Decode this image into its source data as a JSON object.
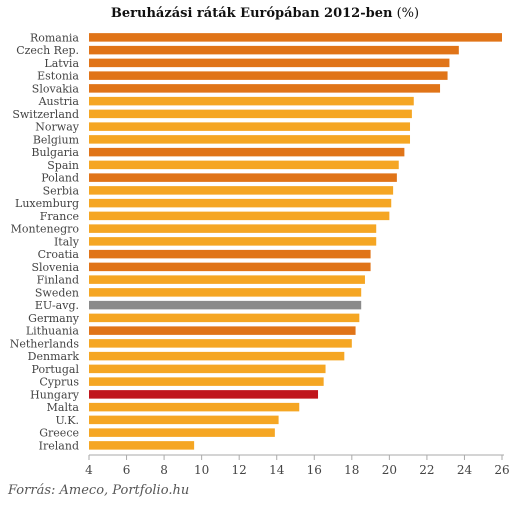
{
  "chart_data": {
    "type": "bar",
    "orientation": "horizontal",
    "title": "Beruházási ráták Európában 2012-ben",
    "title_suffix": "(%)",
    "xlabel": "",
    "ylabel": "",
    "xlim": [
      4,
      26
    ],
    "xticks": [
      4,
      6,
      8,
      10,
      12,
      14,
      16,
      18,
      20,
      22,
      24,
      26
    ],
    "grid": false,
    "legend": "none",
    "colors": {
      "highlight_dark": "#e07418",
      "normal": "#f5a623",
      "eu_average": "#8a8a8a",
      "hungary": "#c0151c"
    },
    "categories": [
      "Romania",
      "Czech Rep.",
      "Latvia",
      "Estonia",
      "Slovakia",
      "Austria",
      "Switzerland",
      "Norway",
      "Belgium",
      "Bulgaria",
      "Spain",
      "Poland",
      "Serbia",
      "Luxemburg",
      "France",
      "Montenegro",
      "Italy",
      "Croatia",
      "Slovenia",
      "Finland",
      "Sweden",
      "EU-avg.",
      "Germany",
      "Lithuania",
      "Netherlands",
      "Denmark",
      "Portugal",
      "Cyprus",
      "Hungary",
      "Malta",
      "U.K.",
      "Greece",
      "Ireland"
    ],
    "values": [
      26.0,
      23.7,
      23.2,
      23.1,
      22.7,
      21.3,
      21.2,
      21.1,
      21.1,
      20.8,
      20.5,
      20.4,
      20.2,
      20.1,
      20.0,
      19.3,
      19.3,
      19.0,
      19.0,
      18.7,
      18.5,
      18.5,
      18.4,
      18.2,
      18.0,
      17.6,
      16.6,
      16.5,
      16.2,
      15.2,
      14.1,
      13.9,
      9.6
    ],
    "bar_colors": [
      "highlight_dark",
      "highlight_dark",
      "highlight_dark",
      "highlight_dark",
      "highlight_dark",
      "normal",
      "normal",
      "normal",
      "normal",
      "highlight_dark",
      "normal",
      "highlight_dark",
      "normal",
      "normal",
      "normal",
      "normal",
      "normal",
      "highlight_dark",
      "highlight_dark",
      "normal",
      "normal",
      "eu_average",
      "normal",
      "highlight_dark",
      "normal",
      "normal",
      "normal",
      "normal",
      "hungary",
      "normal",
      "normal",
      "normal",
      "normal"
    ]
  },
  "source": "Forrás: Ameco, Portfolio.hu"
}
